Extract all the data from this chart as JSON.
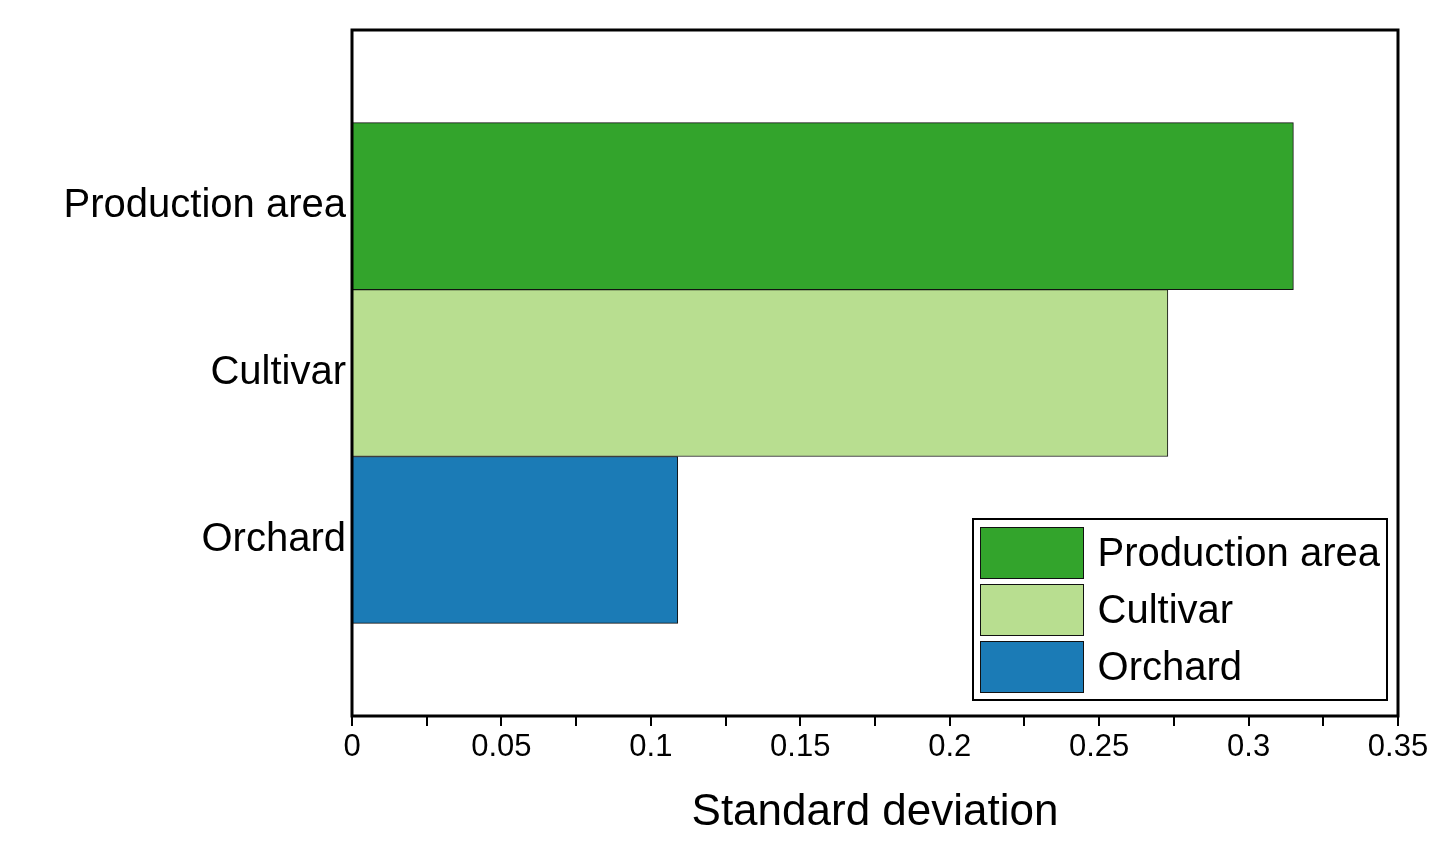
{
  "chart_data": {
    "type": "bar",
    "orientation": "horizontal",
    "categories": [
      "Production area",
      "Cultivar",
      "Orchard"
    ],
    "series": [
      {
        "name": "Production area",
        "color": "#33a42c",
        "values": [
          0.315,
          null,
          null
        ]
      },
      {
        "name": "Cultivar",
        "color": "#b8de90",
        "values": [
          null,
          0.273,
          null
        ]
      },
      {
        "name": "Orchard",
        "color": "#1b7bb6",
        "values": [
          null,
          null,
          0.109
        ]
      }
    ],
    "xlabel": "Standard deviation",
    "xlim": [
      0,
      0.35
    ],
    "xticks": [
      0,
      {
        "value": 0.025,
        "label": null
      },
      0.05,
      {
        "value": 0.075,
        "label": null
      },
      0.1,
      {
        "value": 0.125,
        "label": null
      },
      0.15,
      {
        "value": 0.175,
        "label": null
      },
      0.2,
      {
        "value": 0.225,
        "label": null
      },
      0.25,
      {
        "value": 0.275,
        "label": null
      },
      0.3,
      {
        "value": 0.325,
        "label": null
      },
      0.35
    ],
    "grid": false,
    "legend": "bottom right"
  }
}
